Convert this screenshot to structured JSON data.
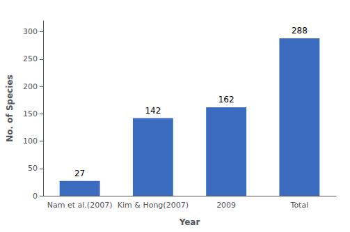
{
  "chart_data": {
    "type": "bar",
    "categories": [
      "Nam et al.(2007)",
      "Kim & Hong(2007)",
      "2009",
      "Total"
    ],
    "values": [
      27,
      142,
      162,
      288
    ],
    "color": "#3a6bbf",
    "xlabel": "Year",
    "ylabel": "No. of Species",
    "ylim": [
      0,
      320
    ],
    "yticks": [
      0,
      50,
      100,
      150,
      200,
      250,
      300
    ],
    "grid": false,
    "data_labels": true
  }
}
